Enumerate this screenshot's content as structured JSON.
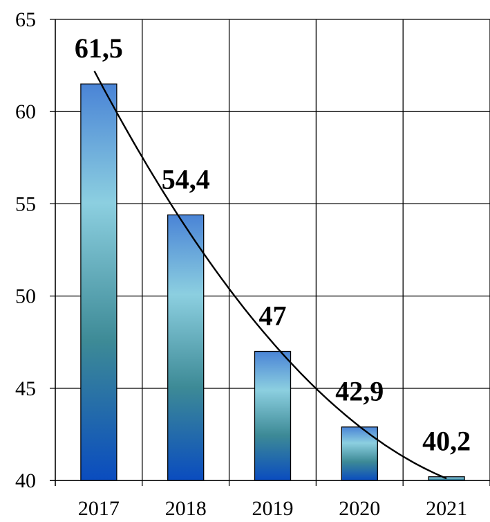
{
  "chart_data": {
    "type": "bar",
    "categories": [
      "2017",
      "2018",
      "2019",
      "2020",
      "2021"
    ],
    "values": [
      61.5,
      54.4,
      47,
      42.9,
      40.2
    ],
    "data_labels": [
      "61,5",
      "54,4",
      "47",
      "42,9",
      "40,2"
    ],
    "ylim": [
      40,
      65
    ],
    "yticks": [
      "40",
      "45",
      "50",
      "55",
      "60",
      "65"
    ],
    "grid": true,
    "trendline": true,
    "colors": {
      "bar_top": "#4a84d6",
      "bar_light": "#8ccfe0",
      "bar_mid": "#3d8a96",
      "bar_bottom": "#0a4cbf",
      "grid": "#000000",
      "trend": "#000000"
    }
  }
}
